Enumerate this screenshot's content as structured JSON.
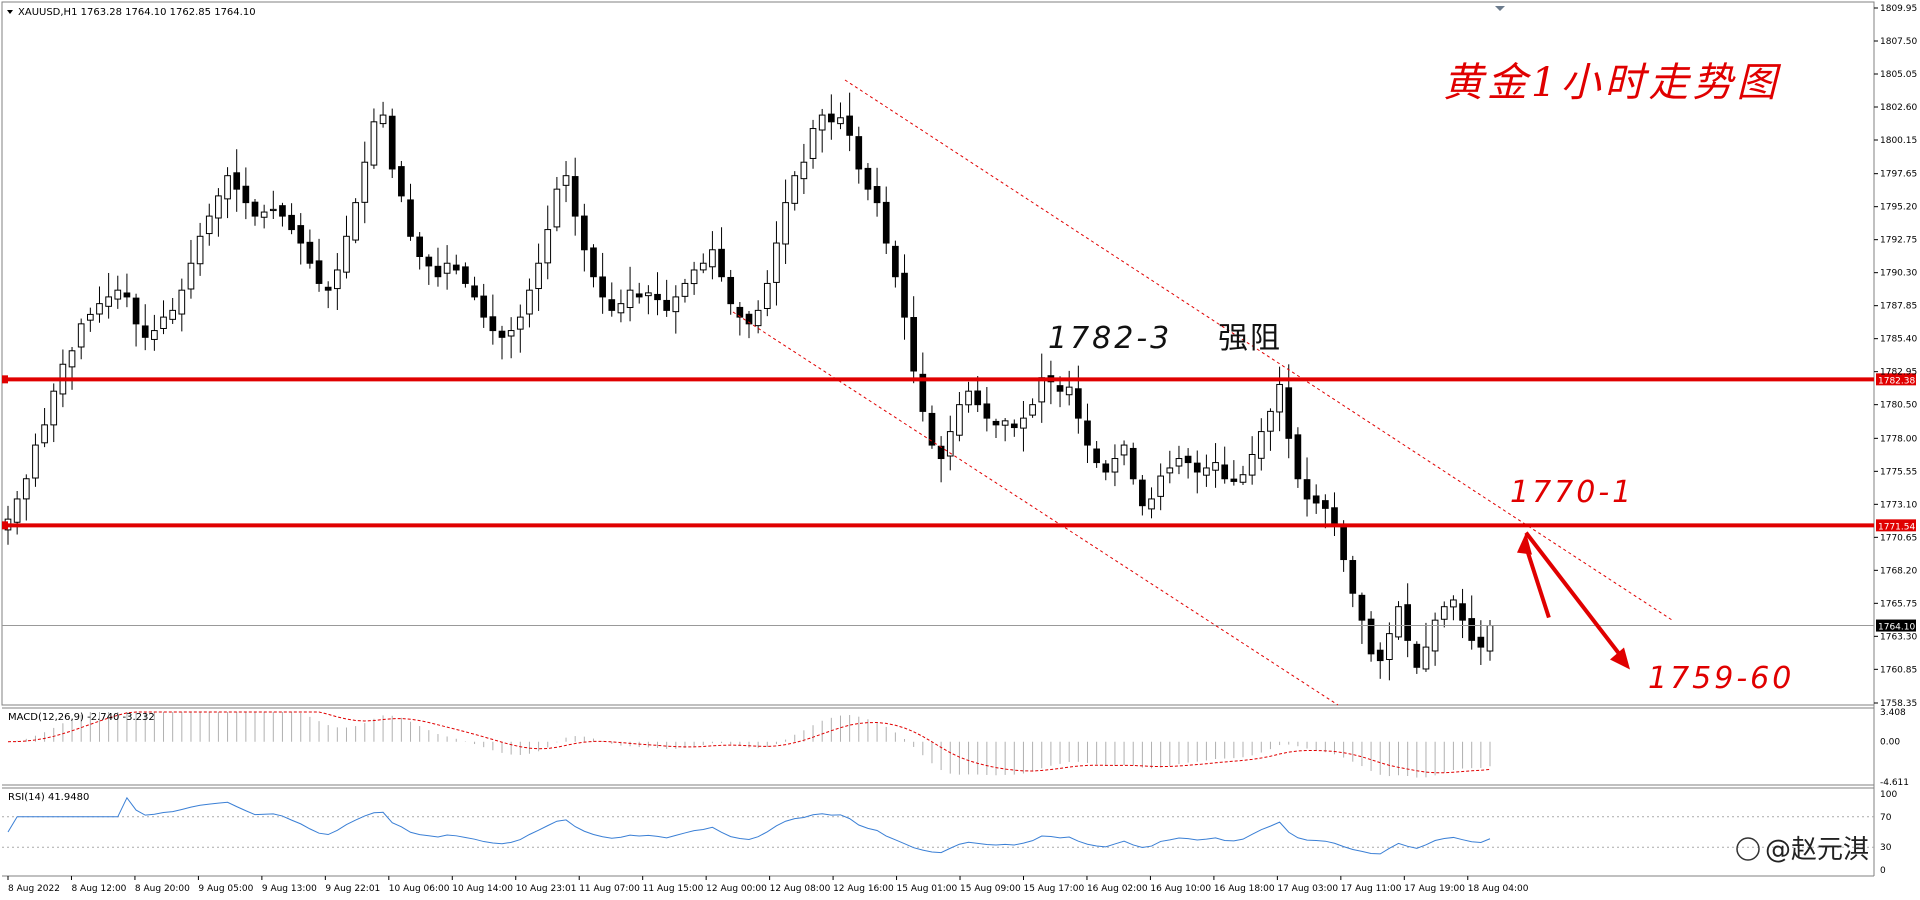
{
  "header": {
    "symbol_line": "XAUUSD,H1  1763.28 1764.10 1762.85 1764.10",
    "title_annotation": "黄金1小时走势图"
  },
  "annotations": {
    "resistance_label": "1782-3",
    "resistance_word": "强阻",
    "level_label_1770": "1770-1",
    "target_label": "1759-60"
  },
  "watermark": "@赵元淇",
  "colors": {
    "bull_body": "#ffffff",
    "bear_body": "#000000",
    "candle_outline": "#000000",
    "level_line": "#e00000",
    "annotation_red": "#e00000",
    "channel": "#e00000",
    "macd_hist": "#b0b0b0",
    "macd_signal": "#e00000",
    "rsi_line": "#3a7fd5"
  },
  "chart_data": [
    {
      "type": "candlestick",
      "panel": "main",
      "symbol": "XAUUSD",
      "timeframe": "H1",
      "ohlc_last": {
        "open": 1763.28,
        "high": 1764.1,
        "low": 1762.85,
        "close": 1764.1
      },
      "ylim": [
        1758.35,
        1809.95
      ],
      "y_ticks": [
        "1809.95",
        "1807.50",
        "1805.05",
        "1802.60",
        "1800.15",
        "1797.65",
        "1795.20",
        "1792.75",
        "1790.30",
        "1787.85",
        "1785.40",
        "1782.95",
        "1780.50",
        "1778.00",
        "1775.55",
        "1773.10",
        "1770.65",
        "1768.20",
        "1765.75",
        "1763.30",
        "1760.85",
        "1758.35"
      ],
      "horizontal_levels": [
        {
          "label": "1782.38",
          "value": 1782.38
        },
        {
          "label": "1771.54",
          "value": 1771.54
        }
      ],
      "current_price": {
        "label": "1764.10",
        "value": 1764.1
      },
      "x_labels": [
        "8 Aug 2022",
        "8 Aug 12:00",
        "8 Aug 20:00",
        "9 Aug 05:00",
        "9 Aug 13:00",
        "9 Aug 22:01",
        "10 Aug 06:00",
        "10 Aug 14:00",
        "10 Aug 23:01",
        "11 Aug 07:00",
        "11 Aug 15:00",
        "12 Aug 00:00",
        "12 Aug 08:00",
        "12 Aug 16:00",
        "15 Aug 01:00",
        "15 Aug 09:00",
        "15 Aug 17:00",
        "16 Aug 02:00",
        "16 Aug 10:00",
        "16 Aug 18:00",
        "17 Aug 03:00",
        "17 Aug 11:00",
        "17 Aug 19:00",
        "18 Aug 04:00"
      ],
      "close_path": [
        1772.0,
        1773.5,
        1775.0,
        1777.5,
        1779.0,
        1781.5,
        1783.5,
        1784.5,
        1786.5,
        1787.2,
        1788.0,
        1788.5,
        1789.0,
        1788.5,
        1786.5,
        1785.5,
        1786.0,
        1787.0,
        1787.5,
        1789.0,
        1791.0,
        1793.0,
        1794.5,
        1796.0,
        1797.5,
        1796.5,
        1795.5,
        1794.5,
        1794.8,
        1795.0,
        1794.5,
        1793.5,
        1792.5,
        1791.0,
        1789.5,
        1789.0,
        1790.5,
        1793.0,
        1795.5,
        1798.5,
        1801.5,
        1802.0,
        1798.0,
        1796.0,
        1793.0,
        1791.5,
        1790.8,
        1790.0,
        1791.0,
        1790.5,
        1789.5,
        1788.5,
        1787.0,
        1786.0,
        1785.5,
        1786.0,
        1787.0,
        1789.0,
        1791.0,
        1793.5,
        1796.5,
        1797.5,
        1794.5,
        1792.0,
        1790.0,
        1788.5,
        1787.5,
        1788.0,
        1789.0,
        1788.5,
        1788.8,
        1788.3,
        1787.5,
        1788.5,
        1789.5,
        1790.5,
        1791.0,
        1792.0,
        1790.0,
        1788.0,
        1787.0,
        1786.5,
        1787.5,
        1789.5,
        1792.5,
        1795.5,
        1797.5,
        1798.5,
        1801.0,
        1802.0,
        1801.5,
        1801.8,
        1800.5,
        1798.0,
        1796.5,
        1795.5,
        1792.5,
        1790.0,
        1787.0,
        1783.0,
        1780.0,
        1777.5,
        1776.5,
        1778.5,
        1780.5,
        1781.5,
        1780.5,
        1779.5,
        1779.0,
        1779.3,
        1778.8,
        1779.5,
        1780.5,
        1782.5,
        1782.2,
        1781.5,
        1781.8,
        1779.5,
        1777.5,
        1776.2,
        1775.5,
        1776.5,
        1777.5,
        1775.0,
        1773.0,
        1773.5,
        1775.2,
        1775.8,
        1776.5,
        1776.2,
        1775.5,
        1775.8,
        1776.2,
        1775.0,
        1774.8,
        1775.3,
        1776.8,
        1778.5,
        1780.0,
        1782.0,
        1778.0,
        1775.0,
        1773.5,
        1773.2,
        1772.8,
        1771.5,
        1769.0,
        1766.5,
        1764.5,
        1762.0,
        1761.5,
        1763.5,
        1765.5,
        1763.0,
        1761.0,
        1762.5,
        1764.5,
        1765.5,
        1766.0,
        1764.5,
        1763.0,
        1762.5,
        1764.1
      ],
      "projection": [
        {
          "label": "1770-1",
          "from_index": 168,
          "from_value": 1764.1,
          "to_value": 1771.0
        },
        {
          "label": "1759-60",
          "to_value": 1759.5
        }
      ]
    },
    {
      "type": "line",
      "panel": "macd",
      "name": "MACD(12,26,9) -2.740 -3.232",
      "y_ticks": [
        "3.408",
        "0.00",
        "-4.611"
      ],
      "ylim": [
        -4.611,
        3.408
      ]
    },
    {
      "type": "line",
      "panel": "rsi",
      "name": "RSI(14) 41.9480",
      "y_ticks": [
        "100",
        "70",
        "30",
        "0"
      ],
      "ylim": [
        0,
        100
      ]
    }
  ]
}
